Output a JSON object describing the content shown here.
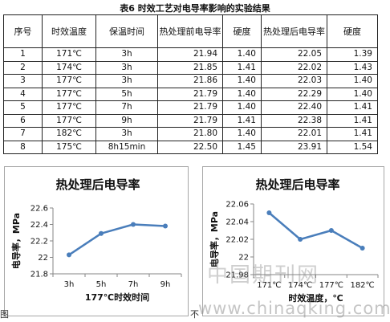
{
  "table": {
    "title": "表6  时效工艺对电导率影响的实验结果",
    "headers": [
      "序号",
      "时效温度",
      "保温时间",
      "热处理前电导率",
      "硬度",
      "热处理后电导率",
      "硬度"
    ],
    "rows": [
      [
        "1",
        "171℃",
        "3h",
        "21.94",
        "1.40",
        "22.05",
        "1.39"
      ],
      [
        "2",
        "174℃",
        "3h",
        "21.85",
        "1.41",
        "22.02",
        "1.43"
      ],
      [
        "3",
        "177℃",
        "3h",
        "21.86",
        "1.40",
        "22.03",
        "1.40"
      ],
      [
        "4",
        "177℃",
        "5h",
        "21.79",
        "1.40",
        "22.29",
        "1.40"
      ],
      [
        "5",
        "177℃",
        "7h",
        "21.79",
        "1.40",
        "22.40",
        "1.41"
      ],
      [
        "6",
        "177℃",
        "9h",
        "21.79",
        "1.41",
        "22.38",
        "1.41"
      ],
      [
        "7",
        "182℃",
        "3h",
        "21.80",
        "1.40",
        "22.01",
        "1.41"
      ],
      [
        "8",
        "175℃",
        "8h15min",
        "22.50",
        "1.45",
        "23.91",
        "1.54"
      ]
    ]
  },
  "colors": {
    "line": "#4a7ebb",
    "axis": "#868686",
    "text": "#111111"
  },
  "chart_data": [
    {
      "type": "line",
      "title": "热处理后电导率",
      "xlabel": "177℃时效时间",
      "ylabel": "电导率，MPa",
      "categories": [
        "3h",
        "5h",
        "7h",
        "9h"
      ],
      "values": [
        22.03,
        22.29,
        22.4,
        22.38
      ],
      "ylim": [
        21.8,
        22.6
      ],
      "yticks": [
        "21.8",
        "22",
        "22.2",
        "22.4",
        "22.6"
      ],
      "grid": false,
      "legend": "none"
    },
    {
      "type": "line",
      "title": "热处理后电导率",
      "xlabel": "时效温度，℃",
      "ylabel": "电导率，MPa",
      "categories": [
        "171℃",
        "174℃",
        "177℃",
        "182℃"
      ],
      "values": [
        22.05,
        22.02,
        22.03,
        22.01
      ],
      "ylim": [
        21.98,
        22.06
      ],
      "yticks": [
        "21.98",
        "22",
        "22.02",
        "22.04",
        "22.06"
      ],
      "grid": false,
      "legend": "none"
    }
  ],
  "watermark": {
    "cn": "中国期刊网",
    "url": "www.chinaqking.com"
  },
  "fragments": {
    "left": "图",
    "right": "不"
  }
}
